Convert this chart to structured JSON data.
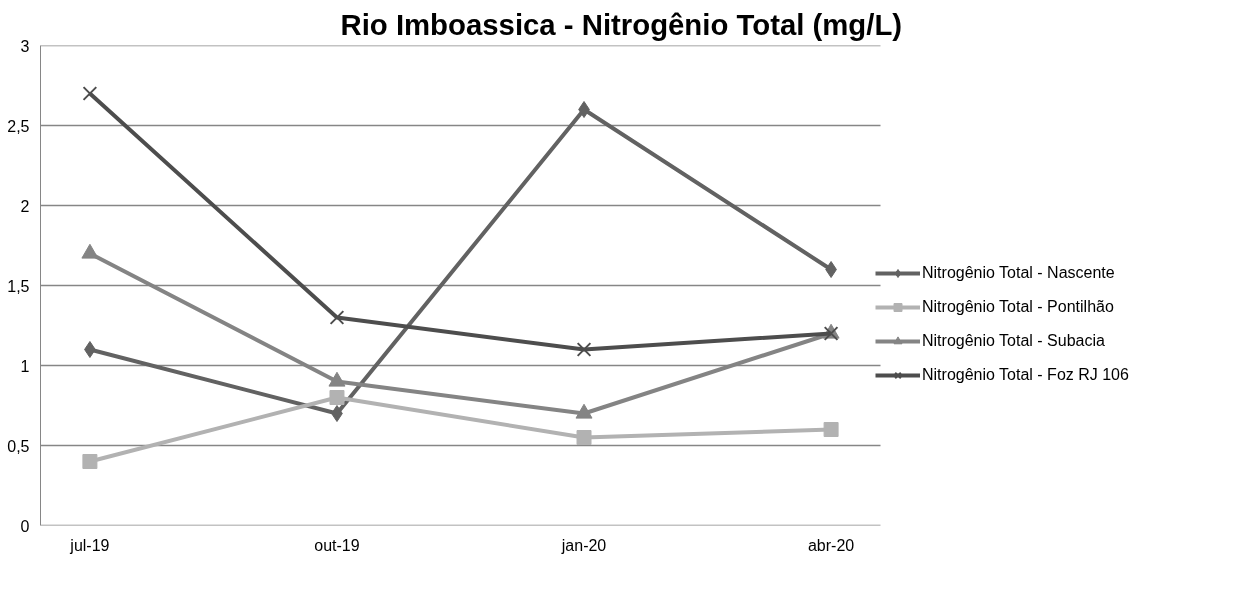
{
  "chart_data": {
    "type": "line",
    "title": "Rio Imboassica - Nitrogênio Total (mg/L)",
    "categories": [
      "jul-19",
      "out-19",
      "jan-20",
      "abr-20"
    ],
    "series": [
      {
        "name": "Nitrogênio Total - Nascente",
        "color": "#626262",
        "marker": "diamond",
        "values": [
          1.1,
          0.7,
          2.6,
          1.6
        ]
      },
      {
        "name": "Nitrogênio Total - Pontilhão",
        "color": "#b2b2b2",
        "marker": "square",
        "values": [
          0.4,
          0.8,
          0.55,
          0.6
        ]
      },
      {
        "name": "Nitrogênio Total - Subacia",
        "color": "#848484",
        "marker": "triangle",
        "values": [
          1.7,
          0.9,
          0.7,
          1.2
        ]
      },
      {
        "name": "Nitrogênio Total - Foz RJ 106",
        "color": "#4d4d4d",
        "marker": "cross",
        "values": [
          2.7,
          1.3,
          1.1,
          1.2
        ]
      }
    ],
    "ylim": [
      0,
      3
    ],
    "yticks": [
      0,
      {
        "value": 0.5,
        "label": "0,5"
      },
      1,
      {
        "value": 1.5,
        "label": "1,5"
      },
      2,
      {
        "value": 2.5,
        "label": "2,5"
      },
      3
    ],
    "grid": "y",
    "legend": "right"
  }
}
